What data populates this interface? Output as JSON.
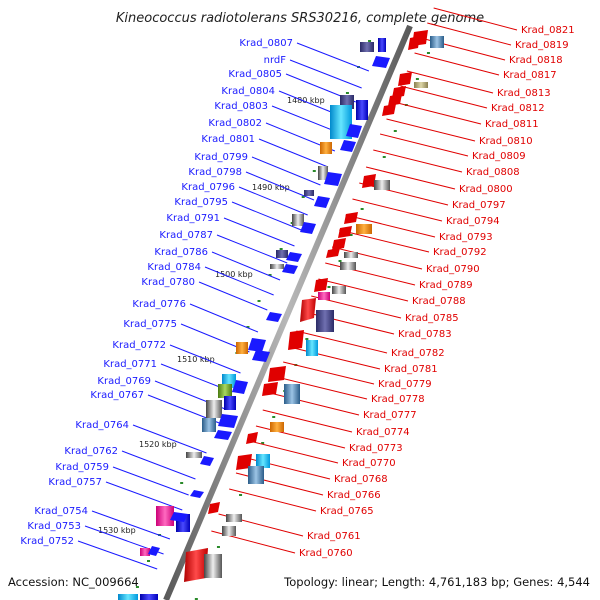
{
  "title": "Kineococcus radiotolerans SRS30216, complete genome",
  "footer": {
    "accession": "Accession: NC_009664",
    "topology": "Topology: linear; Length: 4,761,183 bp; Genes: 4,544"
  },
  "colors": {
    "forward": "#1a1aff",
    "reverse": "#e00000",
    "backbone": "#888888",
    "marker": "#2a8a2a"
  },
  "ruler_labels": [
    "1480 kbp",
    "1490 kbp",
    "1500 kbp",
    "1510 kbp",
    "1520 kbp",
    "1530 kbp"
  ],
  "forward_genes": [
    "Krad_0807",
    "nrdF",
    "Krad_0805",
    "Krad_0804",
    "Krad_0803",
    "Krad_0802",
    "Krad_0801",
    "Krad_0799",
    "Krad_0798",
    "Krad_0796",
    "Krad_0795",
    "Krad_0791",
    "Krad_0787",
    "Krad_0786",
    "Krad_0784",
    "Krad_0780",
    "Krad_0776",
    "Krad_0775",
    "Krad_0772",
    "Krad_0771",
    "Krad_0769",
    "Krad_0767",
    "Krad_0764",
    "Krad_0762",
    "Krad_0759",
    "Krad_0757",
    "Krad_0754",
    "Krad_0753",
    "Krad_0752"
  ],
  "reverse_genes": [
    "Krad_0821",
    "Krad_0819",
    "Krad_0818",
    "Krad_0817",
    "Krad_0813",
    "Krad_0812",
    "Krad_0811",
    "Krad_0810",
    "Krad_0809",
    "Krad_0808",
    "Krad_0800",
    "Krad_0797",
    "Krad_0794",
    "Krad_0793",
    "Krad_0792",
    "Krad_0790",
    "Krad_0789",
    "Krad_0788",
    "Krad_0785",
    "Krad_0783",
    "Krad_0782",
    "Krad_0781",
    "Krad_0779",
    "Krad_0778",
    "Krad_0777",
    "Krad_0774",
    "Krad_0773",
    "Krad_0770",
    "Krad_0768",
    "Krad_0766",
    "Krad_0765",
    "Krad_0761",
    "Krad_0760"
  ]
}
